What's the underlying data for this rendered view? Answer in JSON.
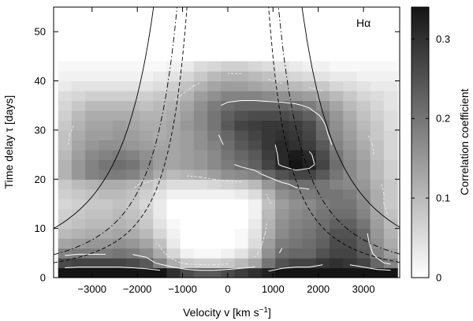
{
  "chart_data": {
    "type": "heatmap",
    "annotation": "Hα",
    "xlabel": "Velocity v [km s⁻¹]",
    "xlabel_parts": {
      "base": "Velocity v [km s",
      "sup": "−1",
      "close": "]"
    },
    "ylabel": "Time delay τ [days]",
    "colorbar_label": "Correlation coefficient",
    "xlim": [
      -3850,
      3800
    ],
    "ylim": [
      0,
      55
    ],
    "x_ticks": [
      -3000,
      -2000,
      -1000,
      0,
      1000,
      2000,
      3000
    ],
    "y_ticks": [
      0,
      10,
      20,
      30,
      40,
      50
    ],
    "colorbar_range": [
      0,
      0.34
    ],
    "colorbar_ticks": [
      0,
      0.1,
      0.2,
      0.3
    ],
    "x_centers": [
      -3600,
      -3300,
      -3000,
      -2700,
      -2400,
      -2100,
      -1800,
      -1500,
      -1200,
      -900,
      -600,
      -300,
      0,
      300,
      600,
      900,
      1200,
      1500,
      1800,
      2100,
      2400,
      2700,
      3000,
      3300,
      3600
    ],
    "y_centers": [
      1,
      3,
      5,
      7,
      9,
      11,
      13,
      15,
      17,
      19,
      21,
      23,
      25,
      27,
      29,
      31,
      33,
      35,
      37,
      39,
      41,
      43
    ],
    "grid_note": "values row-major: one row per y_center (bottom to top), one column per x_center",
    "values": [
      [
        0.34,
        0.34,
        0.34,
        0.34,
        0.34,
        0.34,
        0.34,
        0.34,
        0.3,
        0.26,
        0.24,
        0.24,
        0.26,
        0.28,
        0.3,
        0.32,
        0.34,
        0.34,
        0.34,
        0.34,
        0.34,
        0.34,
        0.34,
        0.34,
        0.34
      ],
      [
        0.26,
        0.27,
        0.27,
        0.27,
        0.27,
        0.26,
        0.24,
        0.18,
        0.12,
        0.08,
        0.07,
        0.07,
        0.08,
        0.1,
        0.13,
        0.2,
        0.25,
        0.27,
        0.27,
        0.29,
        0.3,
        0.29,
        0.27,
        0.22,
        0.18
      ],
      [
        0.18,
        0.19,
        0.19,
        0.19,
        0.2,
        0.19,
        0.17,
        0.12,
        0.06,
        0.02,
        0.01,
        0.01,
        0.02,
        0.04,
        0.08,
        0.16,
        0.21,
        0.22,
        0.22,
        0.25,
        0.27,
        0.27,
        0.24,
        0.18,
        0.14
      ],
      [
        0.13,
        0.14,
        0.15,
        0.15,
        0.16,
        0.15,
        0.13,
        0.09,
        0.03,
        0.0,
        0.0,
        0.0,
        0.0,
        0.01,
        0.05,
        0.14,
        0.19,
        0.2,
        0.21,
        0.23,
        0.26,
        0.26,
        0.23,
        0.16,
        0.12
      ],
      [
        0.1,
        0.11,
        0.12,
        0.12,
        0.13,
        0.12,
        0.1,
        0.06,
        0.02,
        0.0,
        0.0,
        0.0,
        0.0,
        0.01,
        0.04,
        0.12,
        0.17,
        0.19,
        0.2,
        0.22,
        0.25,
        0.25,
        0.22,
        0.15,
        0.11
      ],
      [
        0.08,
        0.09,
        0.1,
        0.1,
        0.11,
        0.1,
        0.08,
        0.04,
        0.01,
        0.0,
        0.0,
        0.0,
        0.0,
        0.0,
        0.03,
        0.11,
        0.16,
        0.18,
        0.19,
        0.21,
        0.23,
        0.23,
        0.2,
        0.14,
        0.1
      ],
      [
        0.07,
        0.08,
        0.09,
        0.09,
        0.1,
        0.09,
        0.07,
        0.03,
        0.0,
        0.0,
        0.0,
        0.0,
        0.0,
        0.0,
        0.02,
        0.1,
        0.15,
        0.17,
        0.18,
        0.2,
        0.21,
        0.21,
        0.18,
        0.13,
        0.09
      ],
      [
        0.06,
        0.07,
        0.08,
        0.08,
        0.09,
        0.08,
        0.06,
        0.03,
        0.0,
        0.0,
        0.0,
        0.0,
        0.0,
        0.0,
        0.02,
        0.09,
        0.14,
        0.16,
        0.17,
        0.19,
        0.2,
        0.2,
        0.17,
        0.12,
        0.08
      ],
      [
        0.07,
        0.08,
        0.09,
        0.1,
        0.1,
        0.09,
        0.07,
        0.04,
        0.02,
        0.02,
        0.02,
        0.02,
        0.02,
        0.03,
        0.05,
        0.11,
        0.16,
        0.18,
        0.19,
        0.2,
        0.2,
        0.19,
        0.16,
        0.12,
        0.08
      ],
      [
        0.08,
        0.1,
        0.11,
        0.12,
        0.12,
        0.11,
        0.09,
        0.07,
        0.05,
        0.05,
        0.05,
        0.06,
        0.07,
        0.08,
        0.1,
        0.15,
        0.19,
        0.21,
        0.21,
        0.2,
        0.18,
        0.17,
        0.15,
        0.11,
        0.08
      ],
      [
        0.11,
        0.15,
        0.18,
        0.19,
        0.19,
        0.18,
        0.15,
        0.12,
        0.1,
        0.11,
        0.12,
        0.14,
        0.16,
        0.17,
        0.18,
        0.22,
        0.25,
        0.27,
        0.27,
        0.24,
        0.2,
        0.17,
        0.14,
        0.1,
        0.07
      ],
      [
        0.11,
        0.15,
        0.18,
        0.2,
        0.21,
        0.2,
        0.17,
        0.14,
        0.13,
        0.14,
        0.15,
        0.17,
        0.19,
        0.21,
        0.23,
        0.27,
        0.31,
        0.34,
        0.32,
        0.27,
        0.21,
        0.17,
        0.14,
        0.1,
        0.07
      ],
      [
        0.1,
        0.14,
        0.17,
        0.18,
        0.19,
        0.18,
        0.16,
        0.14,
        0.13,
        0.14,
        0.15,
        0.17,
        0.2,
        0.22,
        0.24,
        0.28,
        0.31,
        0.33,
        0.31,
        0.26,
        0.2,
        0.16,
        0.13,
        0.09,
        0.06
      ],
      [
        0.09,
        0.13,
        0.15,
        0.16,
        0.16,
        0.15,
        0.14,
        0.13,
        0.13,
        0.14,
        0.16,
        0.18,
        0.21,
        0.24,
        0.26,
        0.29,
        0.31,
        0.3,
        0.28,
        0.24,
        0.18,
        0.15,
        0.12,
        0.09,
        0.06
      ],
      [
        0.09,
        0.12,
        0.14,
        0.14,
        0.15,
        0.14,
        0.13,
        0.12,
        0.13,
        0.14,
        0.16,
        0.19,
        0.22,
        0.25,
        0.27,
        0.29,
        0.3,
        0.29,
        0.27,
        0.22,
        0.17,
        0.14,
        0.11,
        0.08,
        0.06
      ],
      [
        0.08,
        0.11,
        0.13,
        0.13,
        0.14,
        0.13,
        0.12,
        0.12,
        0.13,
        0.15,
        0.17,
        0.2,
        0.24,
        0.27,
        0.28,
        0.29,
        0.29,
        0.28,
        0.26,
        0.21,
        0.16,
        0.13,
        0.1,
        0.08,
        0.05
      ],
      [
        0.07,
        0.1,
        0.12,
        0.12,
        0.12,
        0.12,
        0.11,
        0.11,
        0.12,
        0.14,
        0.17,
        0.2,
        0.23,
        0.25,
        0.26,
        0.26,
        0.26,
        0.25,
        0.23,
        0.19,
        0.15,
        0.12,
        0.09,
        0.07,
        0.05
      ],
      [
        0.06,
        0.08,
        0.1,
        0.1,
        0.1,
        0.1,
        0.09,
        0.1,
        0.11,
        0.13,
        0.16,
        0.19,
        0.21,
        0.22,
        0.22,
        0.22,
        0.22,
        0.21,
        0.19,
        0.16,
        0.13,
        0.1,
        0.08,
        0.06,
        0.04
      ],
      [
        0.05,
        0.06,
        0.07,
        0.07,
        0.07,
        0.07,
        0.07,
        0.08,
        0.09,
        0.11,
        0.14,
        0.16,
        0.18,
        0.18,
        0.18,
        0.17,
        0.16,
        0.15,
        0.14,
        0.12,
        0.1,
        0.08,
        0.06,
        0.05,
        0.04
      ],
      [
        0.03,
        0.04,
        0.04,
        0.04,
        0.04,
        0.04,
        0.04,
        0.05,
        0.07,
        0.09,
        0.11,
        0.13,
        0.14,
        0.14,
        0.13,
        0.12,
        0.11,
        0.1,
        0.09,
        0.08,
        0.06,
        0.05,
        0.04,
        0.03,
        0.03
      ],
      [
        0.02,
        0.02,
        0.02,
        0.02,
        0.02,
        0.02,
        0.02,
        0.03,
        0.04,
        0.06,
        0.08,
        0.1,
        0.11,
        0.11,
        0.1,
        0.09,
        0.07,
        0.06,
        0.05,
        0.04,
        0.03,
        0.03,
        0.02,
        0.02,
        0.02
      ],
      [
        0.01,
        0.01,
        0.01,
        0.01,
        0.01,
        0.01,
        0.01,
        0.01,
        0.02,
        0.03,
        0.05,
        0.06,
        0.07,
        0.07,
        0.06,
        0.05,
        0.04,
        0.03,
        0.02,
        0.02,
        0.01,
        0.01,
        0.01,
        0.01,
        0.01
      ]
    ],
    "model_curves": [
      {
        "style": "solid",
        "color": "#000000",
        "k": 6000
      },
      {
        "style": "dashdot",
        "color": "#000000",
        "k": 4100
      },
      {
        "style": "dashed",
        "color": "#000000",
        "k": 3300
      }
    ],
    "contour_levels": [
      0.1,
      0.2,
      0.3
    ],
    "contour_colors": {
      "0.1": "#e6e6e6",
      "0.2": "#ffffff",
      "0.3": "#ffffff"
    }
  }
}
